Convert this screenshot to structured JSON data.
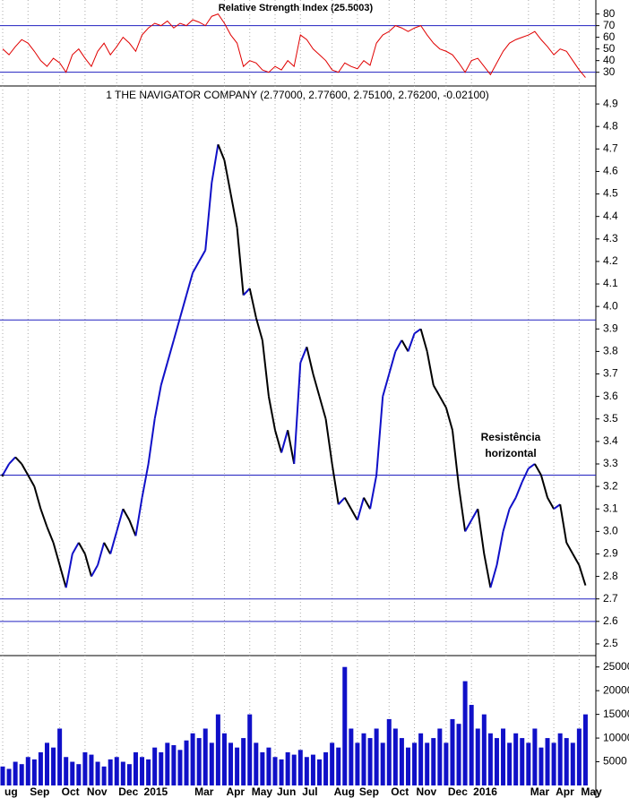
{
  "chart_data": [
    {
      "type": "line",
      "title": "Relative Strength Index (25.5003)",
      "color": "#e00000",
      "hline_color": "#2020c0",
      "ylim": [
        19,
        92
      ],
      "yticks": [
        30,
        40,
        50,
        60,
        70,
        80
      ],
      "hlines": [
        70,
        30
      ],
      "values": [
        50,
        45,
        52,
        58,
        55,
        48,
        40,
        35,
        42,
        38,
        30,
        45,
        50,
        42,
        35,
        48,
        55,
        45,
        52,
        60,
        55,
        48,
        62,
        68,
        72,
        70,
        74,
        68,
        72,
        70,
        75,
        73,
        70,
        78,
        80,
        72,
        62,
        55,
        35,
        40,
        38,
        32,
        30,
        35,
        32,
        40,
        35,
        62,
        58,
        50,
        45,
        40,
        32,
        30,
        38,
        35,
        33,
        40,
        36,
        55,
        62,
        65,
        70,
        68,
        65,
        68,
        70,
        62,
        55,
        50,
        48,
        45,
        38,
        30,
        40,
        42,
        35,
        28,
        38,
        48,
        55,
        58,
        60,
        62,
        65,
        58,
        52,
        45,
        50,
        48,
        40,
        32,
        25.5
      ]
    },
    {
      "type": "line",
      "title": "1 THE NAVIGATOR COMPANY (2.77000, 2.77600, 2.75100, 2.76200, -0.02100)",
      "up_color": "#1010c8",
      "down_color": "#000000",
      "hline_color": "#2020c0",
      "annotation": [
        "Resistência",
        "horizontal"
      ],
      "annotation_color": "#1a1acc",
      "ylim": [
        2.448,
        4.976
      ],
      "yticks": [
        2.5,
        2.6,
        2.7,
        2.8,
        2.9,
        {
          "value": 3,
          "label": "3.0"
        },
        3.1,
        3.2,
        3.3,
        3.4,
        3.5,
        3.6,
        3.7,
        3.8,
        3.9,
        {
          "value": 4,
          "label": "4.0"
        },
        4.1,
        4.2,
        4.3,
        4.4,
        4.5,
        4.6,
        4.7,
        4.8,
        4.9
      ],
      "hlines": [
        3.94,
        3.25,
        2.7,
        2.6
      ],
      "values": [
        3.25,
        3.3,
        3.33,
        3.3,
        3.25,
        3.2,
        3.1,
        3.02,
        2.95,
        2.85,
        2.75,
        2.9,
        2.95,
        2.9,
        2.8,
        2.85,
        2.95,
        2.9,
        3.0,
        3.1,
        3.05,
        2.98,
        3.15,
        3.3,
        3.5,
        3.65,
        3.75,
        3.85,
        3.95,
        4.05,
        4.15,
        4.2,
        4.25,
        4.55,
        4.72,
        4.65,
        4.5,
        4.35,
        4.05,
        4.08,
        3.95,
        3.85,
        3.6,
        3.45,
        3.35,
        3.45,
        3.3,
        3.75,
        3.82,
        3.7,
        3.6,
        3.5,
        3.3,
        3.12,
        3.15,
        3.1,
        3.05,
        3.15,
        3.1,
        3.25,
        3.6,
        3.7,
        3.8,
        3.85,
        3.8,
        3.88,
        3.9,
        3.8,
        3.65,
        3.6,
        3.55,
        3.45,
        3.2,
        3.0,
        3.05,
        3.1,
        2.9,
        2.75,
        2.85,
        3.0,
        3.1,
        3.15,
        3.22,
        3.28,
        3.3,
        3.25,
        3.15,
        3.1,
        3.12,
        2.95,
        2.9,
        2.85,
        2.76
      ]
    },
    {
      "type": "bar",
      "color": "#1010c8",
      "ylim": [
        0,
        27400
      ],
      "yticks": [
        5000,
        10000,
        15000,
        20000,
        25000
      ],
      "categories": [
        "ug",
        null,
        null,
        null,
        "Sep",
        null,
        null,
        null,
        null,
        "Oct",
        null,
        null,
        null,
        "Nov",
        null,
        null,
        null,
        null,
        "Dec",
        null,
        null,
        null,
        "2015",
        null,
        null,
        null,
        null,
        null,
        null,
        null,
        "Mar",
        null,
        null,
        null,
        null,
        "Apr",
        null,
        null,
        null,
        "May",
        null,
        null,
        null,
        "Jun",
        null,
        null,
        null,
        "Jul",
        null,
        null,
        null,
        null,
        "Aug",
        null,
        null,
        null,
        "Sep",
        null,
        null,
        null,
        null,
        "Oct",
        null,
        null,
        null,
        "Nov",
        null,
        null,
        null,
        null,
        "Dec",
        null,
        null,
        null,
        "2016",
        null,
        null,
        null,
        null,
        null,
        null,
        null,
        null,
        "Mar",
        null,
        null,
        null,
        "Apr",
        null,
        null,
        null,
        "May",
        null
      ],
      "values": [
        4000,
        3500,
        5000,
        4500,
        6000,
        5500,
        7000,
        9000,
        8000,
        12000,
        6000,
        5000,
        4500,
        7000,
        6500,
        5000,
        4000,
        5500,
        6000,
        5000,
        4500,
        7000,
        6000,
        5500,
        8000,
        7000,
        9000,
        8500,
        7500,
        9500,
        11000,
        10000,
        12000,
        9000,
        15000,
        11000,
        9000,
        8000,
        10000,
        15000,
        9000,
        7000,
        8000,
        6000,
        5500,
        7000,
        6500,
        7500,
        6000,
        6500,
        5500,
        7000,
        9000,
        8000,
        25000,
        12000,
        9000,
        11000,
        10000,
        12000,
        9000,
        14000,
        12000,
        10000,
        8000,
        9000,
        11000,
        9000,
        10000,
        12000,
        9000,
        14000,
        13000,
        22000,
        17000,
        12000,
        15000,
        11000,
        10000,
        12000,
        9000,
        11000,
        10000,
        9000,
        12000,
        8000,
        10000,
        9000,
        11000,
        10000,
        9000,
        12000,
        15000
      ]
    }
  ]
}
